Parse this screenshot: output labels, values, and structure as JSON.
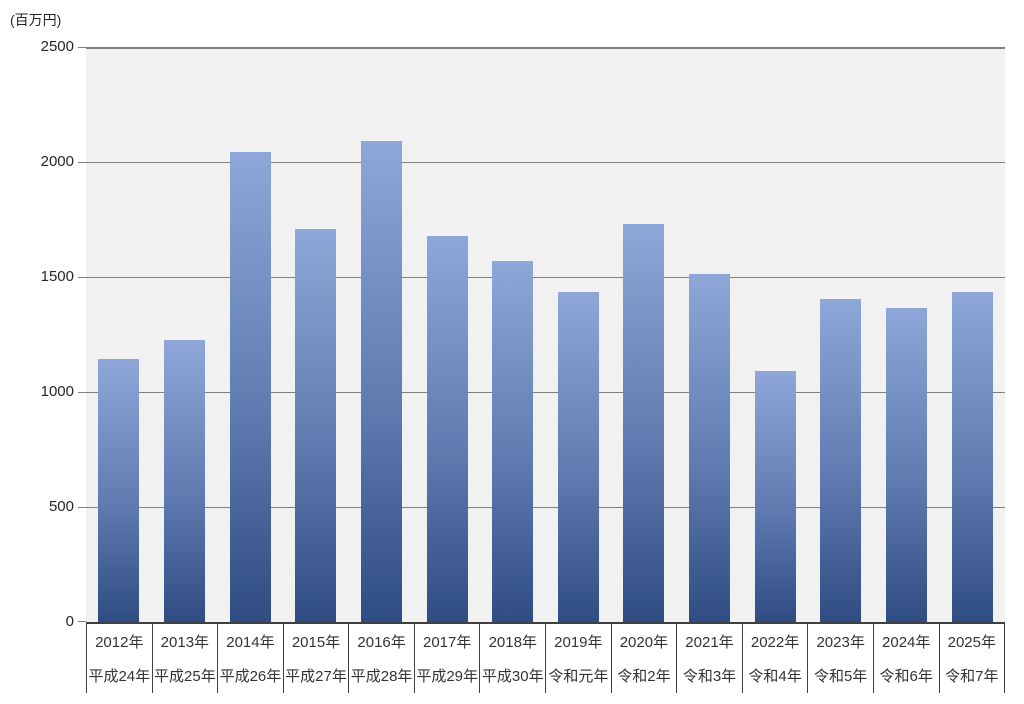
{
  "chart": {
    "unit_label": "(百万円)",
    "colors": {
      "page_background": "#ffffff",
      "plot_background": "#f1f1f1",
      "gridline": "#7f7f7f",
      "axis_border": "#404040",
      "bar_gradient_top": "#8ea7d8",
      "bar_gradient_bottom": "#2f4c83",
      "text": "#262626"
    }
  },
  "chart_data": {
    "type": "bar",
    "title": "",
    "xlabel": "",
    "ylabel": "(百万円)",
    "ylim": [
      0,
      2500
    ],
    "y_ticks": [
      0,
      500,
      1000,
      1500,
      2000,
      2500
    ],
    "grid": true,
    "legend": false,
    "categories": [
      {
        "year": "2012年",
        "era": "平成24年"
      },
      {
        "year": "2013年",
        "era": "平成25年"
      },
      {
        "year": "2014年",
        "era": "平成26年"
      },
      {
        "year": "2015年",
        "era": "平成27年"
      },
      {
        "year": "2016年",
        "era": "平成28年"
      },
      {
        "year": "2017年",
        "era": "平成29年"
      },
      {
        "year": "2018年",
        "era": "平成30年"
      },
      {
        "year": "2019年",
        "era": "令和元年"
      },
      {
        "year": "2020年",
        "era": "令和2年"
      },
      {
        "year": "2021年",
        "era": "令和3年"
      },
      {
        "year": "2022年",
        "era": "令和4年"
      },
      {
        "year": "2023年",
        "era": "令和5年"
      },
      {
        "year": "2024年",
        "era": "令和6年"
      },
      {
        "year": "2025年",
        "era": "令和7年"
      }
    ],
    "values": [
      1145,
      1225,
      2045,
      1710,
      2090,
      1680,
      1570,
      1435,
      1730,
      1515,
      1090,
      1405,
      1365,
      1435
    ]
  }
}
